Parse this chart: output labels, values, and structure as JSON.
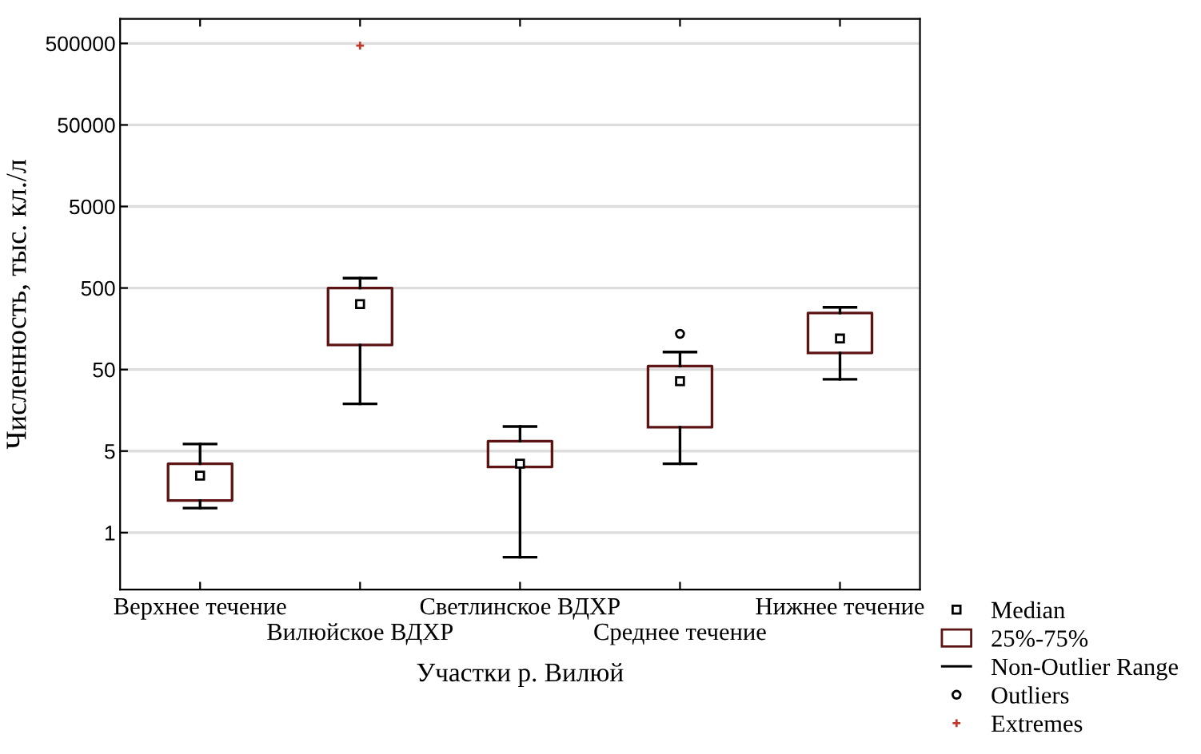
{
  "chart_data": {
    "type": "box",
    "xlabel": "Участки р. Вилюй",
    "ylabel": "Численность, тыс. кл./л",
    "categories": [
      "Верхнее течение",
      "Вилюйское ВДХР",
      "Светлинское ВДХР",
      "Среднее течение",
      "Нижнее течение"
    ],
    "log": true,
    "ylim": [
      0.1,
      1000000
    ],
    "yticks": [
      {
        "value": 0.5,
        "label": "1"
      },
      5,
      50,
      500,
      5000,
      50000,
      500000
    ],
    "grid": "y",
    "legend": "bottom right",
    "marker": "square",
    "annotations": [
      "Median",
      "Non-Outlier Range"
    ],
    "series": [
      {
        "name": "25%-75%",
        "color": "#5c1414",
        "boxes": [
          {
            "low": 1.0,
            "q1": 1.24,
            "median": 2.5,
            "q3": 3.5,
            "high": 6.1
          },
          {
            "low": 19,
            "q1": 100,
            "median": 318,
            "q3": 500,
            "high": 660
          },
          {
            "low": 0.25,
            "q1": 3.2,
            "median": 3.5,
            "q3": 6.6,
            "high": 10
          },
          {
            "low": 3.5,
            "q1": 9.8,
            "median": 36,
            "q3": 55,
            "high": 82
          },
          {
            "low": 38,
            "q1": 80,
            "median": 120,
            "q3": 247,
            "high": 290
          }
        ]
      },
      {
        "name": "Outliers",
        "type": "scatter",
        "marker": "circle",
        "color": "#000000",
        "x": [
          "Среднее течение"
        ],
        "values": [
          137
        ]
      },
      {
        "name": "Extremes",
        "type": "scatter",
        "marker": "cross",
        "color": "#c0392b",
        "x": [
          "Вилюйское ВДХР"
        ],
        "values": [
          470000
        ]
      }
    ]
  }
}
